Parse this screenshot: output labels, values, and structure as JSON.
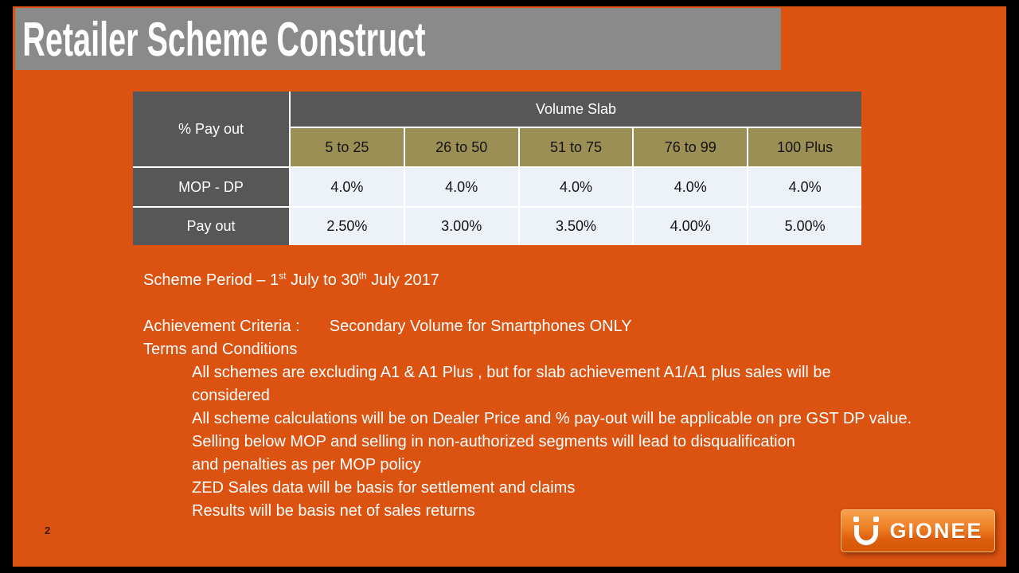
{
  "slide": {
    "title": "Retailer Scheme Construct",
    "page_number": "2"
  },
  "table": {
    "corner_label": "% Pay out",
    "group_header": "Volume Slab",
    "slab_headers": [
      "5 to 25",
      "26 to 50",
      "51 to 75",
      "76 to 99",
      "100 Plus"
    ],
    "rows": [
      {
        "label": "MOP - DP",
        "values": [
          "4.0%",
          "4.0%",
          "4.0%",
          "4.0%",
          "4.0%"
        ]
      },
      {
        "label": "Pay out",
        "values": [
          "2.50%",
          "3.00%",
          "3.50%",
          "4.00%",
          "5.00%"
        ]
      }
    ]
  },
  "body": {
    "scheme_period": {
      "pre": "Scheme Period – 1",
      "sup1": "st",
      "mid": " July to 30",
      "sup2": "th",
      "post": " July 2017"
    },
    "achievement_label": "Achievement Criteria :",
    "achievement_value": "Secondary Volume for Smartphones ONLY",
    "terms_heading": "Terms and Conditions",
    "terms_lines": [
      "All schemes are excluding A1 & A1 Plus , but for slab achievement A1/A1 plus sales will be",
      "considered",
      "All scheme calculations will be on Dealer Price and % pay-out will be applicable on pre GST DP value.",
      "Selling below MOP and selling in non-authorized segments will lead to disqualification",
      "and penalties as per MOP policy",
      "ZED Sales data will be basis for settlement and claims",
      "Results will be basis net of sales returns"
    ]
  },
  "logo": {
    "text": "GIONEE"
  },
  "colors": {
    "slide_background": "#DB5211",
    "frame": "#000000",
    "title_bar": "#8A8A8A",
    "table_dark_cell": "#575757",
    "table_olive_cell": "#9C8F55",
    "table_light_cell": "#EDF1F8",
    "text_on_orange": "#FFFFFF",
    "logo_gradient_top": "#F6A14D",
    "logo_gradient_bottom": "#D45708"
  }
}
